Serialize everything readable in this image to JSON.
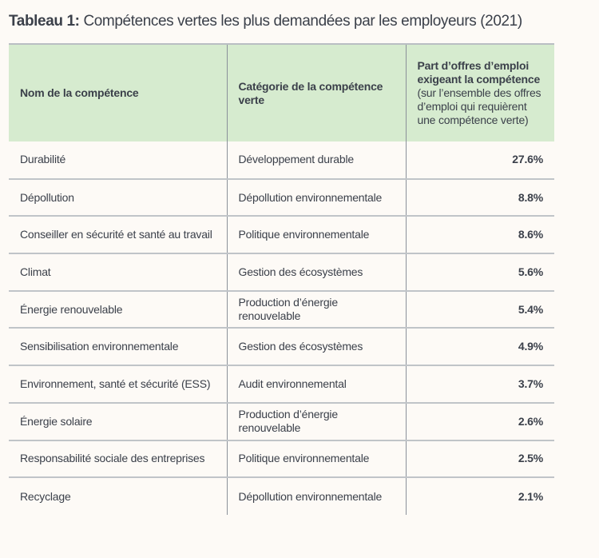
{
  "title": {
    "prefix": "Tableau 1:",
    "text": " Compétences vertes les plus demandées par les employeurs (2021)"
  },
  "header": {
    "col1": "Nom de la compétence",
    "col2": "Catégorie de la compétence verte",
    "col3_bold": "Part d’offres d’emploi exigeant la compétence",
    "col3_note": " (sur l’ensemble des offres d’emploi qui requièrent une compétence verte)"
  },
  "rows": [
    {
      "name": "Durabilité",
      "category": "Développement durable",
      "share": "27.6%"
    },
    {
      "name": "Dépollution",
      "category": "Dépollution environnementale",
      "share": "8.8%"
    },
    {
      "name": "Conseiller en sécurité et santé au travail",
      "category": "Politique environnementale",
      "share": "8.6%"
    },
    {
      "name": "Climat",
      "category": "Gestion des écosystèmes",
      "share": "5.6%"
    },
    {
      "name": "Énergie renouvelable",
      "category": "Production d’énergie renouvelable",
      "share": "5.4%"
    },
    {
      "name": "Sensibilisation environnementale",
      "category": "Gestion des écosystèmes",
      "share": "4.9%"
    },
    {
      "name": "Environnement, santé et sécurité (ESS)",
      "category": "Audit environnemental",
      "share": "3.7%"
    },
    {
      "name": "Énergie solaire",
      "category": "Production d’énergie renouvelable",
      "share": "2.6%"
    },
    {
      "name": "Responsabilité sociale des entreprises",
      "category": "Politique environnementale",
      "share": "2.5%"
    },
    {
      "name": "Recyclage",
      "category": "Dépollution environnementale",
      "share": "2.1%"
    }
  ]
}
